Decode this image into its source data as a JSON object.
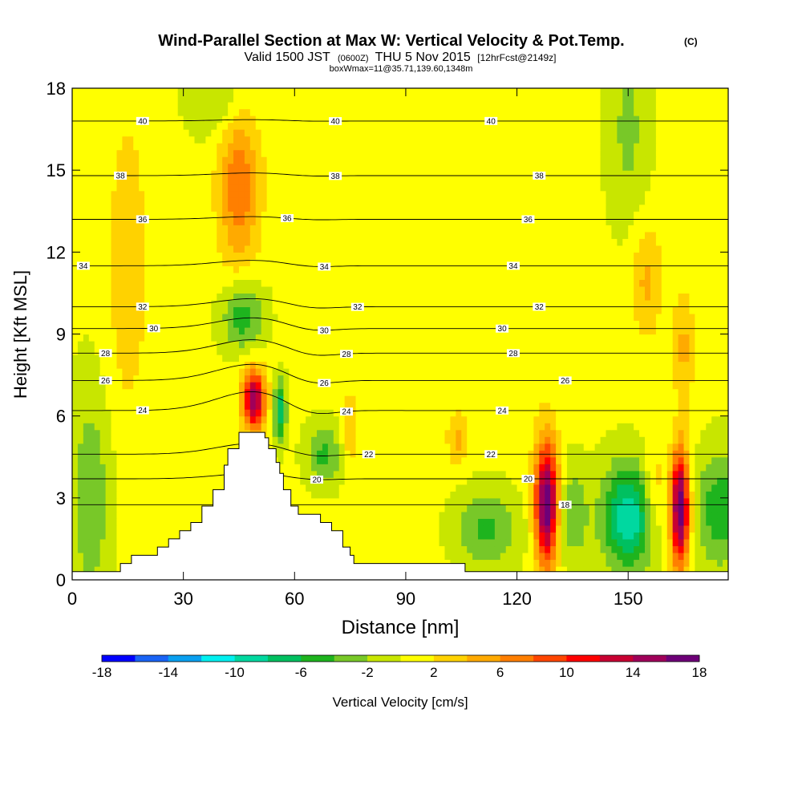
{
  "chart_data": {
    "type": "heatmap",
    "title": "Wind-Parallel Section at Max W: Vertical Velocity & Pot.Temp.",
    "title_mark": "(C)",
    "subtitle": {
      "valid": "Valid 1500 JST",
      "utc": "(0600Z)",
      "date": "THU 5 Nov 2015",
      "run": "[12hrFcst@2149z]"
    },
    "box_info": "boxWmax=11@35.71,139.60,1348m",
    "xlabel": "Distance [nm]",
    "ylabel": "Height [Kft MSL]",
    "xlim": [
      0,
      177
    ],
    "ylim": [
      0,
      18
    ],
    "x_ticks": [
      "0",
      "30",
      "60",
      "90",
      "120",
      "150"
    ],
    "y_ticks": [
      "0",
      "3",
      "6",
      "9",
      "12",
      "15",
      "18"
    ],
    "colorbar": {
      "label": "Vertical Velocity [cm/s]",
      "tick_labels": [
        "-18",
        "-14",
        "-10",
        "-6",
        "-2",
        "2",
        "6",
        "10",
        "14",
        "18"
      ],
      "boundaries": [
        -18,
        -16,
        -14,
        -12,
        -10,
        -8,
        -6,
        -4,
        -2,
        0,
        2,
        4,
        6,
        8,
        10,
        12,
        14,
        16,
        18
      ],
      "colors": [
        "#0000ff",
        "#1a64f5",
        "#0aa0f0",
        "#00f0f0",
        "#00d8a0",
        "#00c060",
        "#1eb41e",
        "#78c828",
        "#c8e600",
        "#ffff00",
        "#ffd200",
        "#ffaa00",
        "#ff7f00",
        "#ff4600",
        "#ff0000",
        "#c80032",
        "#a0005a",
        "#6e0078"
      ]
    },
    "background_value": 0.5,
    "w_features": [
      {
        "x": 128,
        "y": 2.8,
        "sx": 2.2,
        "sy": 1.6,
        "w": 18
      },
      {
        "x": 164,
        "y": 2.6,
        "sx": 1.8,
        "sy": 1.5,
        "w": 18
      },
      {
        "x": 49,
        "y": 6.6,
        "sx": 2.2,
        "sy": 0.8,
        "w": 15
      },
      {
        "x": 45,
        "y": 14.5,
        "sx": 4,
        "sy": 2.2,
        "w": 7
      },
      {
        "x": 150,
        "y": 2.3,
        "sx": 5,
        "sy": 1.4,
        "w": -10
      },
      {
        "x": 175,
        "y": 2.6,
        "sx": 5,
        "sy": 1.5,
        "w": -6
      },
      {
        "x": 112,
        "y": 1.9,
        "sx": 6,
        "sy": 1,
        "w": -5
      },
      {
        "x": 135,
        "y": 2.4,
        "sx": 3,
        "sy": 1.3,
        "w": -4
      },
      {
        "x": 157,
        "y": 3.3,
        "sx": 2,
        "sy": 1.2,
        "w": 4
      },
      {
        "x": 46,
        "y": 9.7,
        "sx": 4,
        "sy": 0.9,
        "w": -6
      },
      {
        "x": 56,
        "y": 6.2,
        "sx": 1.2,
        "sy": 0.8,
        "w": -8
      },
      {
        "x": 68,
        "y": 4.6,
        "sx": 3.5,
        "sy": 0.8,
        "w": -5
      },
      {
        "x": 5,
        "y": 3,
        "sx": 4,
        "sy": 3,
        "w": -4
      },
      {
        "x": 40,
        "y": 17.5,
        "sx": 6,
        "sy": 1,
        "w": -3
      },
      {
        "x": 150,
        "y": 16.5,
        "sx": 4,
        "sy": 2.5,
        "w": -3
      },
      {
        "x": 15,
        "y": 11.5,
        "sx": 4,
        "sy": 4,
        "w": 3
      },
      {
        "x": 155,
        "y": 11,
        "sx": 3,
        "sy": 1.5,
        "w": 4
      },
      {
        "x": 75,
        "y": 5.5,
        "sx": 1.5,
        "sy": 1,
        "w": 4
      },
      {
        "x": 104,
        "y": 5.2,
        "sx": 2,
        "sy": 0.7,
        "w": 4
      },
      {
        "x": 123,
        "y": 11,
        "sx": 4,
        "sy": 3,
        "w": 1.5
      },
      {
        "x": 165,
        "y": 8.5,
        "sx": 2,
        "sy": 1.5,
        "w": 4
      }
    ],
    "theta_contours": [
      {
        "label": "18",
        "base": 2.75,
        "peak": 0,
        "label_x": 133
      },
      {
        "label": "20",
        "base": 3.7,
        "peak": 0.2,
        "label_x": 66
      },
      {
        "label": "20",
        "base": 3.7,
        "peak": 0.2,
        "label_x": 123
      },
      {
        "label": "22",
        "base": 4.6,
        "peak": 0.4,
        "label_x": 80
      },
      {
        "label": "22",
        "base": 4.6,
        "peak": 0.4,
        "label_x": 113
      },
      {
        "label": "24",
        "base": 6.2,
        "peak": 0.7,
        "label_x": 19
      },
      {
        "label": "24",
        "base": 6.2,
        "peak": 0.7,
        "label_x": 74
      },
      {
        "label": "24",
        "base": 6.2,
        "peak": 0.7,
        "label_x": 116
      },
      {
        "label": "26",
        "base": 7.3,
        "peak": 0.6,
        "label_x": 9
      },
      {
        "label": "26",
        "base": 7.3,
        "peak": 0.6,
        "label_x": 68
      },
      {
        "label": "26",
        "base": 7.3,
        "peak": 0.6,
        "label_x": 133
      },
      {
        "label": "28",
        "base": 8.3,
        "peak": 0.5,
        "label_x": 9
      },
      {
        "label": "28",
        "base": 8.3,
        "peak": 0.5,
        "label_x": 74
      },
      {
        "label": "28",
        "base": 8.3,
        "peak": 0.5,
        "label_x": 119
      },
      {
        "label": "30",
        "base": 9.2,
        "peak": 0.4,
        "label_x": 22
      },
      {
        "label": "30",
        "base": 9.2,
        "peak": 0.4,
        "label_x": 68
      },
      {
        "label": "30",
        "base": 9.2,
        "peak": 0.4,
        "label_x": 116
      },
      {
        "label": "32",
        "base": 10,
        "peak": 0.3,
        "label_x": 19
      },
      {
        "label": "32",
        "base": 10,
        "peak": 0.3,
        "label_x": 77
      },
      {
        "label": "32",
        "base": 10,
        "peak": 0.3,
        "label_x": 126
      },
      {
        "label": "34",
        "base": 11.5,
        "peak": 0.2,
        "label_x": 3
      },
      {
        "label": "34",
        "base": 11.5,
        "peak": 0.2,
        "label_x": 68
      },
      {
        "label": "34",
        "base": 11.5,
        "peak": 0.2,
        "label_x": 119
      },
      {
        "label": "36",
        "base": 13.2,
        "peak": 0.1,
        "label_x": 19
      },
      {
        "label": "36",
        "base": 13.2,
        "peak": 0.1,
        "label_x": 58
      },
      {
        "label": "36",
        "base": 13.2,
        "peak": 0.1,
        "label_x": 123
      },
      {
        "label": "38",
        "base": 14.8,
        "peak": 0.1,
        "label_x": 13
      },
      {
        "label": "38",
        "base": 14.8,
        "peak": 0.1,
        "label_x": 71
      },
      {
        "label": "38",
        "base": 14.8,
        "peak": 0.1,
        "label_x": 126
      },
      {
        "label": "40",
        "base": 16.8,
        "peak": 0.05,
        "label_x": 19
      },
      {
        "label": "40",
        "base": 16.8,
        "peak": 0.05,
        "label_x": 71
      },
      {
        "label": "40",
        "base": 16.8,
        "peak": 0.05,
        "label_x": 113
      }
    ],
    "terrain_kft": [
      [
        0,
        0.3
      ],
      [
        13,
        0.3
      ],
      [
        13,
        0.6
      ],
      [
        16,
        0.6
      ],
      [
        16,
        0.9
      ],
      [
        23,
        0.9
      ],
      [
        23,
        1.2
      ],
      [
        26,
        1.2
      ],
      [
        26,
        1.5
      ],
      [
        29,
        1.5
      ],
      [
        29,
        1.8
      ],
      [
        32,
        1.8
      ],
      [
        32,
        2.1
      ],
      [
        35,
        2.1
      ],
      [
        35,
        2.7
      ],
      [
        38,
        2.7
      ],
      [
        38,
        3.3
      ],
      [
        41,
        3.3
      ],
      [
        41,
        4.2
      ],
      [
        42,
        4.2
      ],
      [
        42,
        4.8
      ],
      [
        45,
        4.8
      ],
      [
        45,
        5.4
      ],
      [
        52,
        5.4
      ],
      [
        52,
        5.2
      ],
      [
        53,
        5.2
      ],
      [
        53,
        4.8
      ],
      [
        55,
        4.8
      ],
      [
        55,
        4.3
      ],
      [
        56,
        4.3
      ],
      [
        56,
        3.9
      ],
      [
        57,
        3.9
      ],
      [
        57,
        3.3
      ],
      [
        59,
        3.3
      ],
      [
        59,
        2.7
      ],
      [
        61,
        2.7
      ],
      [
        61,
        2.4
      ],
      [
        67,
        2.4
      ],
      [
        67,
        2.1
      ],
      [
        70,
        2.1
      ],
      [
        70,
        1.8
      ],
      [
        73,
        1.8
      ],
      [
        73,
        1.2
      ],
      [
        75,
        1.2
      ],
      [
        75,
        0.9
      ],
      [
        76,
        0.9
      ],
      [
        76,
        0.6
      ],
      [
        106,
        0.6
      ],
      [
        106,
        0.3
      ],
      [
        177,
        0.3
      ]
    ]
  }
}
